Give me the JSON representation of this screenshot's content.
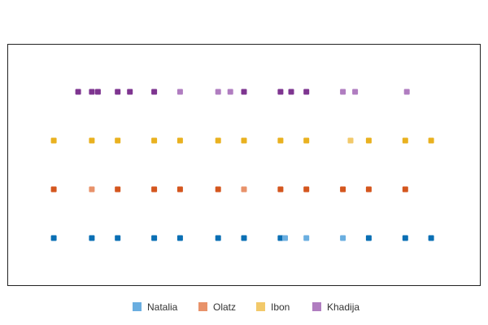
{
  "chart_data": {
    "type": "scatter",
    "title": "",
    "xlabel": "",
    "ylabel": "",
    "xlim": [
      0,
      15.5
    ],
    "grid": false,
    "legend_position": "bottom",
    "categories": [
      "Natalia",
      "Olatz",
      "Ibon",
      "Khadija"
    ],
    "series": [
      {
        "name": "Natalia",
        "color": "#6aaee0",
        "marks": [
          {
            "x": 1.5,
            "weight": "dark"
          },
          {
            "x": 2.75,
            "weight": "dark"
          },
          {
            "x": 3.6,
            "weight": "dark"
          },
          {
            "x": 4.8,
            "weight": "dark"
          },
          {
            "x": 5.65,
            "weight": "dark"
          },
          {
            "x": 6.9,
            "weight": "dark"
          },
          {
            "x": 7.75,
            "weight": "dark"
          },
          {
            "x": 8.95,
            "weight": "dark"
          },
          {
            "x": 9.1,
            "weight": "light"
          },
          {
            "x": 9.8,
            "weight": "light"
          },
          {
            "x": 11.0,
            "weight": "light"
          },
          {
            "x": 11.85,
            "weight": "dark"
          },
          {
            "x": 13.05,
            "weight": "dark"
          },
          {
            "x": 13.9,
            "weight": "dark"
          }
        ]
      },
      {
        "name": "Olatz",
        "color": "#e8926a",
        "marks": [
          {
            "x": 1.5,
            "weight": "dark"
          },
          {
            "x": 2.75,
            "weight": "light"
          },
          {
            "x": 3.6,
            "weight": "dark"
          },
          {
            "x": 4.8,
            "weight": "dark"
          },
          {
            "x": 5.65,
            "weight": "dark"
          },
          {
            "x": 6.9,
            "weight": "dark"
          },
          {
            "x": 7.75,
            "weight": "light"
          },
          {
            "x": 8.95,
            "weight": "dark"
          },
          {
            "x": 9.8,
            "weight": "dark"
          },
          {
            "x": 11.0,
            "weight": "dark"
          },
          {
            "x": 11.85,
            "weight": "dark"
          },
          {
            "x": 13.05,
            "weight": "dark"
          }
        ]
      },
      {
        "name": "Ibon",
        "color": "#f2c96a",
        "marks": [
          {
            "x": 1.5,
            "weight": "dark"
          },
          {
            "x": 2.75,
            "weight": "dark"
          },
          {
            "x": 3.6,
            "weight": "dark"
          },
          {
            "x": 4.8,
            "weight": "dark"
          },
          {
            "x": 5.65,
            "weight": "dark"
          },
          {
            "x": 6.9,
            "weight": "dark"
          },
          {
            "x": 7.75,
            "weight": "dark"
          },
          {
            "x": 8.95,
            "weight": "dark"
          },
          {
            "x": 9.8,
            "weight": "dark"
          },
          {
            "x": 11.25,
            "weight": "light"
          },
          {
            "x": 11.85,
            "weight": "dark"
          },
          {
            "x": 13.05,
            "weight": "dark"
          },
          {
            "x": 13.9,
            "weight": "dark"
          }
        ]
      },
      {
        "name": "Khadija",
        "color": "#b07dc0",
        "marks": [
          {
            "x": 2.3,
            "weight": "dark"
          },
          {
            "x": 2.75,
            "weight": "dark"
          },
          {
            "x": 2.95,
            "weight": "dark"
          },
          {
            "x": 3.6,
            "weight": "dark"
          },
          {
            "x": 4.0,
            "weight": "dark"
          },
          {
            "x": 4.8,
            "weight": "dark"
          },
          {
            "x": 5.65,
            "weight": "light"
          },
          {
            "x": 6.9,
            "weight": "light"
          },
          {
            "x": 7.3,
            "weight": "light"
          },
          {
            "x": 7.75,
            "weight": "dark"
          },
          {
            "x": 8.95,
            "weight": "dark"
          },
          {
            "x": 9.3,
            "weight": "dark"
          },
          {
            "x": 9.8,
            "weight": "dark"
          },
          {
            "x": 11.0,
            "weight": "light"
          },
          {
            "x": 11.4,
            "weight": "light"
          },
          {
            "x": 13.1,
            "weight": "light"
          }
        ]
      }
    ],
    "dark_colors": {
      "Natalia": "#0a6fb4",
      "Olatz": "#d4561e",
      "Ibon": "#e9b11f",
      "Khadija": "#7e3590"
    },
    "legend": [
      "Natalia",
      "Olatz",
      "Ibon",
      "Khadija"
    ]
  }
}
